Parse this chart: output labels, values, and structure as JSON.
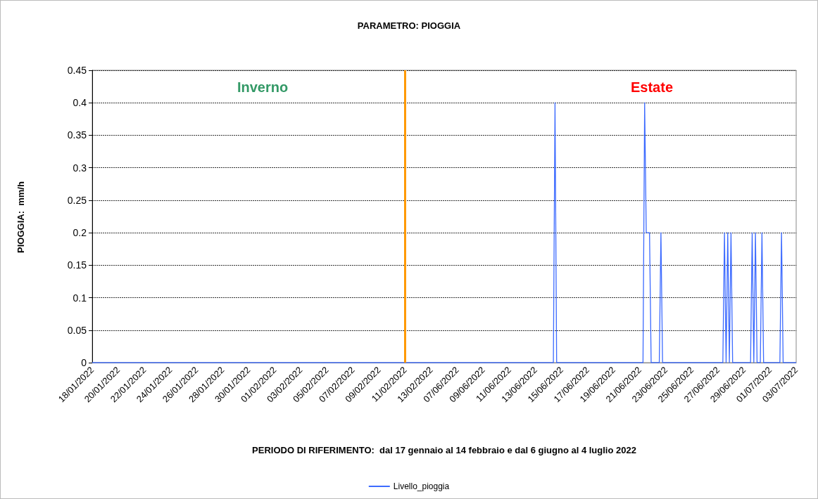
{
  "chart_data": {
    "type": "line",
    "title": "PARAMETRO: PIOGGIA",
    "ylabel": "PIOGGIA:  mm/h",
    "xlabel": "PERIODO DI RIFERIMENTO:  dal 17 gennaio al 14 febbraio e dal 6 giugno al 4 luglio 2022",
    "annotations": [
      "Inverno",
      "Estate"
    ],
    "categories": [
      "18/01/2022",
      null,
      null,
      null,
      null,
      null,
      null,
      null,
      null,
      null,
      null,
      null,
      null,
      null,
      null,
      null,
      "20/01/2022",
      null,
      null,
      null,
      null,
      null,
      null,
      null,
      null,
      null,
      null,
      null,
      null,
      null,
      null,
      null,
      "22/01/2022",
      null,
      null,
      null,
      null,
      null,
      null,
      null,
      null,
      null,
      null,
      null,
      null,
      null,
      null,
      null,
      "24/01/2022",
      null,
      null,
      null,
      null,
      null,
      null,
      null,
      null,
      null,
      null,
      null,
      null,
      null,
      null,
      null,
      "26/01/2022",
      null,
      null,
      null,
      null,
      null,
      null,
      null,
      null,
      null,
      null,
      null,
      null,
      null,
      null,
      null,
      "28/01/2022",
      null,
      null,
      null,
      null,
      null,
      null,
      null,
      null,
      null,
      null,
      null,
      null,
      null,
      null,
      null,
      "30/01/2022",
      null,
      null,
      null,
      null,
      null,
      null,
      null,
      null,
      null,
      null,
      null,
      null,
      null,
      null,
      null,
      "01/02/2022",
      null,
      null,
      null,
      null,
      null,
      null,
      null,
      null,
      null,
      null,
      null,
      null,
      null,
      null,
      null,
      "03/02/2022",
      null,
      null,
      null,
      null,
      null,
      null,
      null,
      null,
      null,
      null,
      null,
      null,
      null,
      null,
      null,
      "05/02/2022",
      null,
      null,
      null,
      null,
      null,
      null,
      null,
      null,
      null,
      null,
      null,
      null,
      null,
      null,
      null,
      "07/02/2022",
      null,
      null,
      null,
      null,
      null,
      null,
      null,
      null,
      null,
      null,
      null,
      null,
      null,
      null,
      null,
      "09/02/2022",
      null,
      null,
      null,
      null,
      null,
      null,
      null,
      null,
      null,
      null,
      null,
      null,
      null,
      null,
      null,
      "11/02/2022",
      null,
      null,
      null,
      null,
      null,
      null,
      null,
      null,
      null,
      null,
      null,
      null,
      null,
      null,
      null,
      "13/02/2022",
      null,
      null,
      null,
      null,
      null,
      null,
      null,
      null,
      null,
      null,
      null,
      null,
      null,
      null,
      null,
      "07/06/2022",
      null,
      null,
      null,
      null,
      null,
      null,
      null,
      null,
      null,
      null,
      null,
      null,
      null,
      null,
      null,
      "09/06/2022",
      null,
      null,
      null,
      null,
      null,
      null,
      null,
      null,
      null,
      null,
      null,
      null,
      null,
      null,
      null,
      "11/06/2022",
      null,
      null,
      null,
      null,
      null,
      null,
      null,
      null,
      null,
      null,
      null,
      null,
      null,
      null,
      null,
      "13/06/2022",
      null,
      null,
      null,
      null,
      null,
      null,
      null,
      null,
      null,
      null,
      null,
      null,
      null,
      null,
      null,
      "15/06/2022",
      null,
      null,
      null,
      null,
      null,
      null,
      null,
      null,
      null,
      null,
      null,
      null,
      null,
      null,
      null,
      "17/06/2022",
      null,
      null,
      null,
      null,
      null,
      null,
      null,
      null,
      null,
      null,
      null,
      null,
      null,
      null,
      null,
      "19/06/2022",
      null,
      null,
      null,
      null,
      null,
      null,
      null,
      null,
      null,
      null,
      null,
      null,
      null,
      null,
      null,
      "21/06/2022",
      null,
      null,
      null,
      null,
      null,
      null,
      null,
      null,
      null,
      null,
      null,
      null,
      null,
      null,
      null,
      "23/06/2022",
      null,
      null,
      null,
      null,
      null,
      null,
      null,
      null,
      null,
      null,
      null,
      null,
      null,
      null,
      null,
      "25/06/2022",
      null,
      null,
      null,
      null,
      null,
      null,
      null,
      null,
      null,
      null,
      null,
      null,
      null,
      null,
      null,
      "27/06/2022",
      null,
      null,
      null,
      null,
      null,
      null,
      null,
      null,
      null,
      null,
      null,
      null,
      null,
      null,
      null,
      "29/06/2022",
      null,
      null,
      null,
      null,
      null,
      null,
      null,
      null,
      null,
      null,
      null,
      null,
      null,
      null,
      null,
      "01/07/2022",
      null,
      null,
      null,
      null,
      null,
      null,
      null,
      null,
      null,
      null,
      null,
      null,
      null,
      null,
      null,
      "03/07/2022"
    ],
    "series": [
      {
        "name": "Livello_pioggia",
        "color": "#3d6bff",
        "values": [
          0,
          0,
          0,
          0,
          0,
          0,
          0,
          0,
          0,
          0,
          0,
          0,
          0,
          0,
          0,
          0,
          0,
          0,
          0,
          0,
          0,
          0,
          0,
          0,
          0,
          0,
          0,
          0,
          0,
          0,
          0,
          0,
          0,
          0,
          0,
          0,
          0,
          0,
          0,
          0,
          0,
          0,
          0,
          0,
          0,
          0,
          0,
          0,
          0,
          0,
          0,
          0,
          0,
          0,
          0,
          0,
          0,
          0,
          0,
          0,
          0,
          0,
          0,
          0,
          0,
          0,
          0,
          0,
          0,
          0,
          0,
          0,
          0,
          0,
          0,
          0,
          0,
          0,
          0,
          0,
          0,
          0,
          0,
          0,
          0,
          0,
          0,
          0,
          0,
          0,
          0,
          0,
          0,
          0,
          0,
          0,
          0,
          0,
          0,
          0,
          0,
          0,
          0,
          0,
          0,
          0,
          0,
          0,
          0,
          0,
          0,
          0,
          0,
          0,
          0,
          0,
          0,
          0,
          0,
          0,
          0,
          0,
          0,
          0,
          0,
          0,
          0,
          0,
          0,
          0,
          0,
          0,
          0,
          0,
          0,
          0,
          0,
          0,
          0,
          0,
          0,
          0,
          0,
          0,
          0,
          0,
          0,
          0,
          0,
          0,
          0,
          0,
          0,
          0,
          0,
          0,
          0,
          0,
          0,
          0,
          0,
          0,
          0,
          0,
          0,
          0,
          0,
          0,
          0,
          0,
          0,
          0,
          0,
          0,
          0,
          0,
          0,
          0,
          0,
          0,
          0,
          0,
          0,
          0,
          0,
          0,
          0,
          0,
          0,
          0,
          0,
          0,
          0,
          0,
          0,
          0,
          0,
          0,
          0,
          0,
          0,
          0,
          0,
          0,
          0,
          0,
          0,
          0,
          0,
          0,
          0,
          0,
          0,
          0,
          0,
          0,
          0,
          0,
          0,
          0,
          0,
          0,
          0,
          0,
          0,
          0,
          0,
          0,
          0,
          0,
          0,
          0,
          0,
          0,
          0,
          0,
          0,
          0,
          0,
          0,
          0,
          0,
          0,
          0,
          0,
          0,
          0,
          0,
          0,
          0,
          0,
          0,
          0,
          0,
          0,
          0,
          0,
          0,
          0,
          0,
          0,
          0,
          0,
          0,
          0,
          0,
          0,
          0,
          0,
          0,
          0,
          0,
          0,
          0,
          0,
          0,
          0,
          0,
          0,
          0,
          0,
          0,
          0,
          0,
          0.4,
          0,
          0,
          0,
          0,
          0,
          0,
          0,
          0,
          0,
          0,
          0,
          0,
          0,
          0,
          0,
          0,
          0,
          0,
          0,
          0,
          0,
          0,
          0,
          0,
          0,
          0,
          0,
          0,
          0,
          0,
          0,
          0,
          0,
          0,
          0,
          0,
          0,
          0,
          0,
          0,
          0,
          0,
          0,
          0,
          0,
          0,
          0,
          0,
          0,
          0,
          0,
          0,
          0,
          0,
          0.4,
          0.2,
          0.2,
          0.2,
          0,
          0,
          0,
          0,
          0,
          0,
          0.2,
          0,
          0,
          0,
          0,
          0,
          0,
          0,
          0,
          0,
          0,
          0,
          0,
          0,
          0,
          0,
          0,
          0,
          0,
          0,
          0,
          0,
          0,
          0,
          0,
          0,
          0,
          0,
          0,
          0,
          0,
          0,
          0,
          0,
          0,
          0,
          0,
          0,
          0,
          0.2,
          0,
          0.2,
          0,
          0.2,
          0,
          0,
          0,
          0,
          0,
          0,
          0,
          0,
          0,
          0,
          0,
          0,
          0.2,
          0,
          0.2,
          0,
          0,
          0,
          0.2,
          0,
          0,
          0,
          0,
          0,
          0,
          0,
          0,
          0,
          0,
          0,
          0.2,
          0,
          0,
          0,
          0,
          0,
          0,
          0,
          0,
          0
        ]
      }
    ],
    "ylim": [
      0,
      0.45
    ],
    "yticks": [
      0,
      0.05,
      0.1,
      0.15,
      0.2,
      0.25,
      0.3,
      0.35,
      0.4,
      0.45
    ],
    "ref_lines": [
      {
        "axis": "x",
        "value": "11/02/2022",
        "color": "#ff9900"
      }
    ],
    "grid": "y",
    "legend": "bottom",
    "marker": "none",
    "line_style": "solid"
  }
}
